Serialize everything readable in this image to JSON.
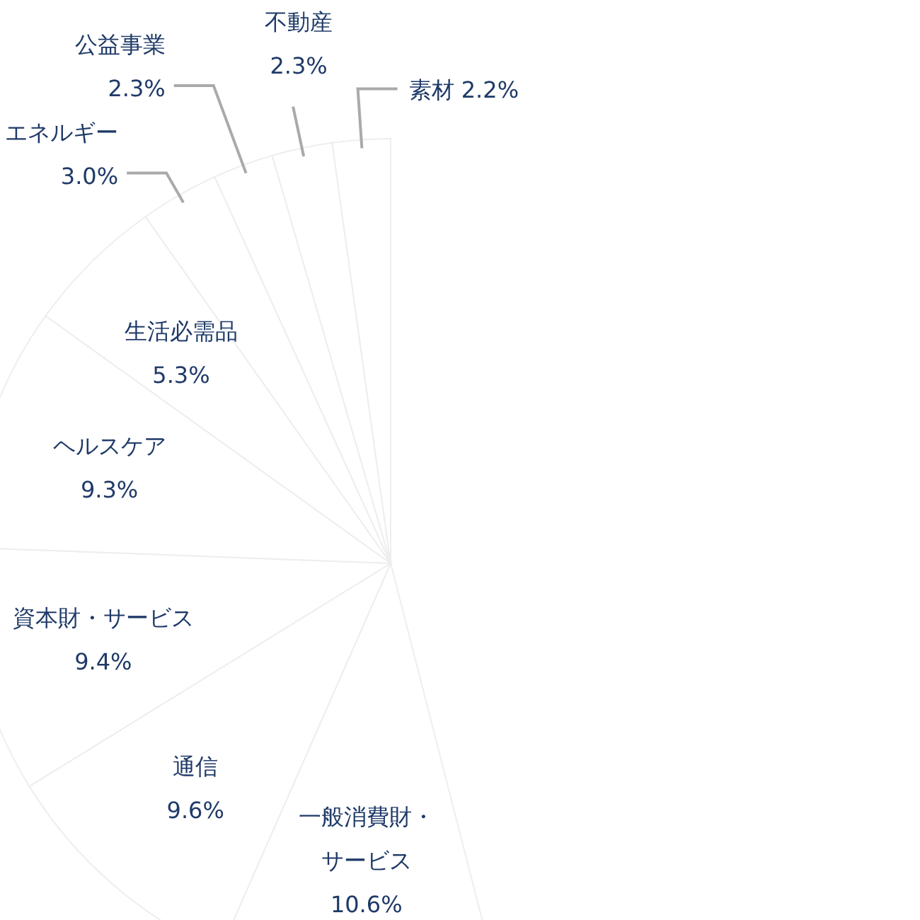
{
  "chart_data": {
    "type": "pie",
    "categories": [
      "一般消費財・サービス",
      "通信",
      "資本財・サービス",
      "ヘルスケア",
      "生活必需品",
      "エネルギー",
      "公益事業",
      "不動産",
      "素材"
    ],
    "values": [
      10.6,
      9.6,
      9.4,
      9.3,
      5.3,
      3.0,
      2.3,
      2.3,
      2.2
    ],
    "value_labels": [
      "10.6%",
      "9.6%",
      "9.4%",
      "9.3%",
      "5.3%",
      "3.0%",
      "2.3%",
      "2.3%",
      "2.2%"
    ],
    "colors": [
      "#ffffff",
      "#ffffff",
      "#ffffff",
      "#ffffff",
      "#ffffff",
      "#ffffff",
      "#ffffff",
      "#ffffff",
      "#ffffff"
    ]
  }
}
